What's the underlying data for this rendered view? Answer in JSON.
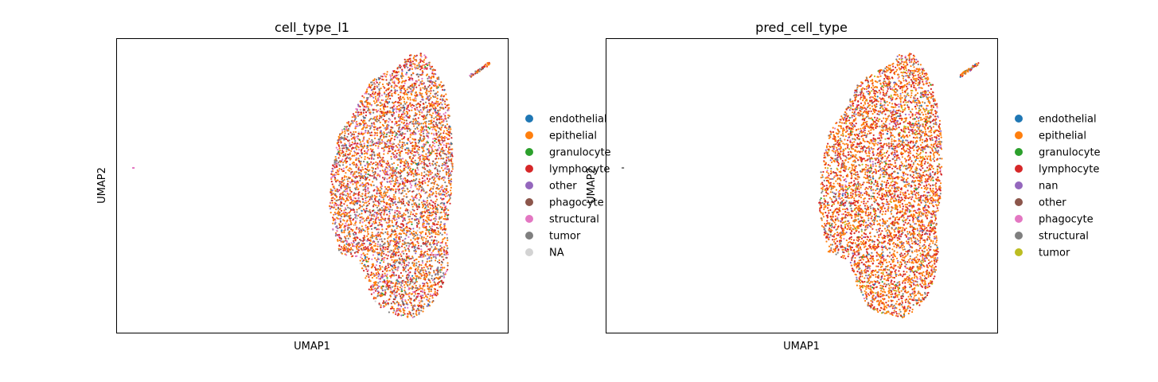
{
  "chart_data": [
    {
      "type": "scatter",
      "title": "cell_type_l1",
      "xlabel": "UMAP1",
      "ylabel": "UMAP2",
      "grid": false,
      "legend_placement": "right-outside",
      "legend": [
        {
          "label": "endothelial",
          "color": "#1f77b4"
        },
        {
          "label": "epithelial",
          "color": "#ff7f0e"
        },
        {
          "label": "granulocyte",
          "color": "#2ca02c"
        },
        {
          "label": "lymphocyte",
          "color": "#d62728"
        },
        {
          "label": "other",
          "color": "#9467bd"
        },
        {
          "label": "phagocyte",
          "color": "#8c564b"
        },
        {
          "label": "structural",
          "color": "#e377c2"
        },
        {
          "label": "tumor",
          "color": "#7f7f7f"
        },
        {
          "label": "NA",
          "color": "#d3d3d3"
        }
      ],
      "point_mix": {
        "epithelial": 0.4,
        "lymphocyte": 0.22,
        "tumor": 0.16,
        "structural": 0.1,
        "other": 0.05,
        "phagocyte": 0.03,
        "endothelial": 0.02,
        "granulocyte": 0.01,
        "NA": 0.01
      }
    },
    {
      "type": "scatter",
      "title": "pred_cell_type",
      "xlabel": "UMAP1",
      "ylabel": "UMAP2",
      "grid": false,
      "legend_placement": "right-outside",
      "legend": [
        {
          "label": "endothelial",
          "color": "#1f77b4"
        },
        {
          "label": "epithelial",
          "color": "#ff7f0e"
        },
        {
          "label": "granulocyte",
          "color": "#2ca02c"
        },
        {
          "label": "lymphocyte",
          "color": "#d62728"
        },
        {
          "label": "nan",
          "color": "#9467bd"
        },
        {
          "label": "other",
          "color": "#8c564b"
        },
        {
          "label": "phagocyte",
          "color": "#e377c2"
        },
        {
          "label": "structural",
          "color": "#7f7f7f"
        },
        {
          "label": "tumor",
          "color": "#bcbd22"
        }
      ],
      "point_mix": {
        "epithelial": 0.48,
        "lymphocyte": 0.3,
        "structural": 0.1,
        "nan": 0.05,
        "tumor": 0.03,
        "phagocyte": 0.02,
        "endothelial": 0.01,
        "granulocyte": 0.01
      }
    }
  ]
}
